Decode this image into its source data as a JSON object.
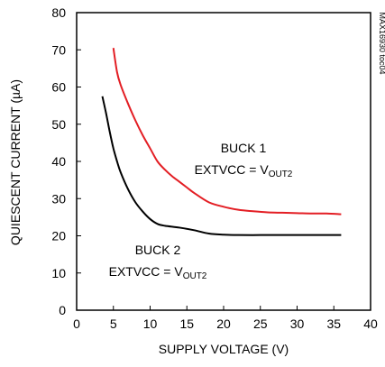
{
  "chart_data": {
    "type": "line",
    "xlabel": "SUPPLY VOLTAGE (V)",
    "ylabel": "QUIESCENT CURRENT (µA)",
    "xlim": [
      0,
      40
    ],
    "ylim": [
      0,
      80
    ],
    "x_ticks": [
      0,
      5,
      10,
      15,
      20,
      25,
      30,
      35,
      40
    ],
    "y_ticks": [
      0,
      10,
      20,
      30,
      40,
      50,
      60,
      70,
      80
    ],
    "grid": false,
    "figure_code": "MAX16930 toc04",
    "series": [
      {
        "color": "#e31e24",
        "annotation": {
          "line1": "BUCK 1",
          "prefix": "EXTVCC = V",
          "subscript": "OUT2"
        },
        "x": [
          5.0,
          5.5,
          6,
          7,
          8,
          9,
          10,
          11,
          12,
          13,
          14,
          15,
          16,
          18,
          20,
          22,
          24,
          26,
          28,
          30,
          32,
          34,
          36
        ],
        "y": [
          70.5,
          64,
          60.5,
          55.5,
          51,
          47,
          43.5,
          40,
          37.8,
          36,
          34.5,
          33,
          31.5,
          29,
          27.8,
          27,
          26.6,
          26.3,
          26.2,
          26.1,
          26.0,
          26.0,
          25.8
        ]
      },
      {
        "color": "#000000",
        "annotation": {
          "line1": "BUCK 2",
          "prefix": "EXTVCC = V",
          "subscript": "OUT2"
        },
        "x": [
          3.5,
          4,
          4.5,
          5,
          5.5,
          6,
          7,
          8,
          9,
          10,
          11,
          12,
          14,
          16,
          18,
          20,
          22,
          25,
          28,
          30,
          32,
          34,
          36
        ],
        "y": [
          57.5,
          53,
          48,
          43.5,
          40,
          37,
          32.5,
          29,
          26.5,
          24.5,
          23.2,
          22.7,
          22.2,
          21.5,
          20.6,
          20.3,
          20.2,
          20.2,
          20.2,
          20.2,
          20.2,
          20.2,
          20.2
        ]
      }
    ]
  }
}
